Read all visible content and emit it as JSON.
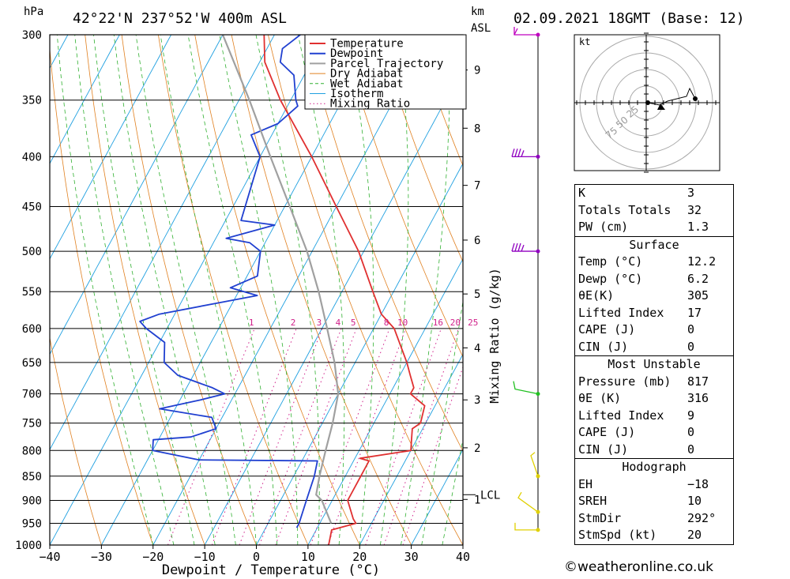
{
  "header": {
    "location": "42°22'N  237°52'W  400m  ASL",
    "datetime": "02.09.2021  18GMT  (Base: 12)",
    "hpa_label": "hPa",
    "km_label": "km",
    "asl_label": "ASL"
  },
  "chart_data": {
    "type": "line",
    "title": "42°22'N  237°52'W  400m  ASL",
    "xlabel": "Dewpoint / Temperature (°C)",
    "ylabel": "hPa",
    "secondary_ylabel": "Mixing Ratio (g/kg)",
    "xlim": [
      -40,
      40
    ],
    "ylim": [
      1000,
      300
    ],
    "x_ticks": [
      "−40",
      "−30",
      "−20",
      "−10",
      "0",
      "10",
      "20",
      "30",
      "40"
    ],
    "pressure_levels": [
      300,
      350,
      400,
      450,
      500,
      550,
      600,
      650,
      700,
      750,
      800,
      850,
      900,
      950,
      1000
    ],
    "km_ticks": [
      {
        "label": "9",
        "p": 326
      },
      {
        "label": "8",
        "p": 374
      },
      {
        "label": "7",
        "p": 428
      },
      {
        "label": "6",
        "p": 487
      },
      {
        "label": "5",
        "p": 553
      },
      {
        "label": "4",
        "p": 628
      },
      {
        "label": "3",
        "p": 710
      },
      {
        "label": "2",
        "p": 795
      },
      {
        "label": "1",
        "p": 898
      }
    ],
    "lcl_label": "LCL",
    "lcl_p": 888,
    "mixing_ratio_labels": [
      "1",
      "2",
      "3",
      "4",
      "5",
      "8",
      "10",
      "16",
      "20",
      "25"
    ],
    "legend": [
      "Temperature",
      "Dewpoint",
      "Parcel Trajectory",
      "Dry Adiabat",
      "Wet Adiabat",
      "Isotherm",
      "Mixing Ratio"
    ],
    "series": [
      {
        "name": "Temperature",
        "color": "#e03030",
        "points": [
          [
            1000,
            14
          ],
          [
            965,
            13
          ],
          [
            950,
            17
          ],
          [
            940,
            16
          ],
          [
            900,
            13
          ],
          [
            850,
            13
          ],
          [
            820,
            13
          ],
          [
            815,
            11
          ],
          [
            800,
            20
          ],
          [
            780,
            19
          ],
          [
            760,
            18
          ],
          [
            750,
            19
          ],
          [
            720,
            18
          ],
          [
            700,
            14
          ],
          [
            690,
            14
          ],
          [
            670,
            12
          ],
          [
            650,
            10
          ],
          [
            600,
            4
          ],
          [
            580,
            0
          ],
          [
            550,
            -4
          ],
          [
            500,
            -11
          ],
          [
            450,
            -20
          ],
          [
            400,
            -30
          ],
          [
            350,
            -42
          ],
          [
            320,
            -49
          ],
          [
            300,
            -52
          ]
        ]
      },
      {
        "name": "Dewpoint",
        "color": "#2040d0",
        "points": [
          [
            960,
            6
          ],
          [
            950,
            6
          ],
          [
            900,
            5
          ],
          [
            850,
            4
          ],
          [
            820,
            3
          ],
          [
            818,
            -20
          ],
          [
            800,
            -30
          ],
          [
            780,
            -31
          ],
          [
            775,
            -24
          ],
          [
            760,
            -20
          ],
          [
            740,
            -22
          ],
          [
            725,
            -33
          ],
          [
            710,
            -26
          ],
          [
            700,
            -22
          ],
          [
            690,
            -25
          ],
          [
            670,
            -33
          ],
          [
            650,
            -37
          ],
          [
            620,
            -39
          ],
          [
            600,
            -44
          ],
          [
            590,
            -46
          ],
          [
            580,
            -43
          ],
          [
            555,
            -26
          ],
          [
            545,
            -32
          ],
          [
            530,
            -28
          ],
          [
            500,
            -30
          ],
          [
            490,
            -33
          ],
          [
            485,
            -38
          ],
          [
            470,
            -30
          ],
          [
            465,
            -37
          ],
          [
            400,
            -40
          ],
          [
            380,
            -44
          ],
          [
            370,
            -40
          ],
          [
            355,
            -38
          ],
          [
            350,
            -39
          ],
          [
            330,
            -42
          ],
          [
            320,
            -46
          ],
          [
            310,
            -47
          ],
          [
            305,
            -46
          ],
          [
            300,
            -45
          ]
        ]
      },
      {
        "name": "Parcel Trajectory",
        "color": "#a0a0a0",
        "points": [
          [
            950,
            12.2
          ],
          [
            900,
            8
          ],
          [
            888,
            6.3
          ],
          [
            850,
            5
          ],
          [
            800,
            3.5
          ],
          [
            750,
            2
          ],
          [
            700,
            0
          ],
          [
            650,
            -4
          ],
          [
            600,
            -9
          ],
          [
            550,
            -14.5
          ],
          [
            500,
            -21
          ],
          [
            450,
            -29
          ],
          [
            400,
            -38
          ],
          [
            350,
            -48
          ],
          [
            300,
            -60
          ]
        ]
      }
    ],
    "wind_barb_levels_hpa": [
      300,
      400,
      500,
      700,
      850,
      925,
      965
    ]
  },
  "hodograph": {
    "unit_label": "kt",
    "ring_labels": [
      "25",
      "50",
      "75"
    ]
  },
  "indices": {
    "general": [
      {
        "label": "K",
        "value": "3"
      },
      {
        "label": "Totals Totals",
        "value": "32"
      },
      {
        "label": "PW (cm)",
        "value": "1.3"
      }
    ],
    "surface_title": "Surface",
    "surface": [
      {
        "label": "Temp (°C)",
        "value": "12.2"
      },
      {
        "label": "Dewp (°C)",
        "value": "6.2"
      },
      {
        "label": "θE(K)",
        "value": "305"
      },
      {
        "label": "Lifted Index",
        "value": "17"
      },
      {
        "label": "CAPE (J)",
        "value": "0"
      },
      {
        "label": "CIN (J)",
        "value": "0"
      }
    ],
    "mu_title": "Most Unstable",
    "most_unstable": [
      {
        "label": "Pressure (mb)",
        "value": "817"
      },
      {
        "label": "θE (K)",
        "value": "316"
      },
      {
        "label": "Lifted Index",
        "value": "9"
      },
      {
        "label": "CAPE (J)",
        "value": "0"
      },
      {
        "label": "CIN (J)",
        "value": "0"
      }
    ],
    "hodo_title": "Hodograph",
    "hodograph": [
      {
        "label": "EH",
        "value": "−18"
      },
      {
        "label": "SREH",
        "value": "10"
      },
      {
        "label": "StmDir",
        "value": "292°"
      },
      {
        "label": "StmSpd (kt)",
        "value": "20"
      }
    ]
  },
  "footer": {
    "copyright": "©weatheronline.co.uk"
  },
  "colors": {
    "temperature": "#e03030",
    "dewpoint": "#2040d0",
    "parcel": "#a0a0a0",
    "dry_adiabat": "#e08020",
    "wet_adiabat": "#30b030",
    "isotherm": "#20a0e0",
    "mixing_ratio": "#d0208a"
  }
}
